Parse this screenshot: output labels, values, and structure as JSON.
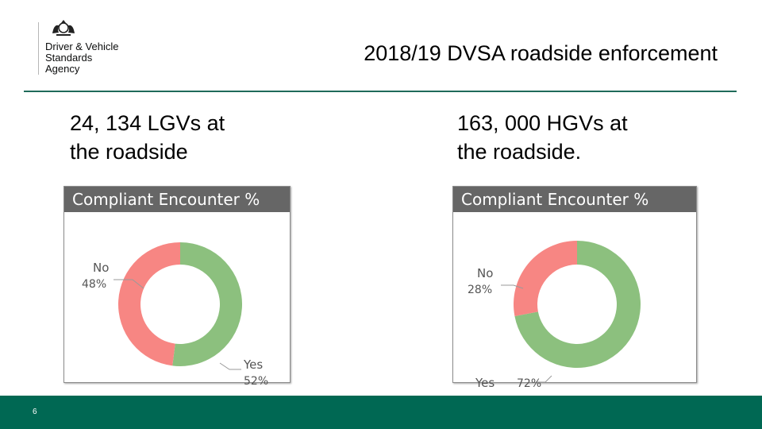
{
  "logo": {
    "line1": "Driver & Vehicle",
    "line2": "Standards",
    "line3": "Agency"
  },
  "slide": {
    "title": "2018/19 DVSA roadside enforcement",
    "page_number": "6"
  },
  "captions": {
    "left": {
      "line1": "24, 134 LGVs at",
      "line2": "the roadside"
    },
    "right": {
      "line1": "163, 000 HGVs at",
      "line2": "the roadside."
    }
  },
  "colors": {
    "accent_green": "#006853",
    "yes_slice": "#8cc07e",
    "no_slice": "#f78683",
    "header_grey": "#666666"
  },
  "chart_data": [
    {
      "type": "pie",
      "title": "Compliant Encounter %",
      "categories": [
        "Yes",
        "No"
      ],
      "values": [
        52,
        48
      ],
      "labels": [
        {
          "name": "Yes",
          "value": "52%"
        },
        {
          "name": "No",
          "value": "48%"
        }
      ],
      "donut": true
    },
    {
      "type": "pie",
      "title": "Compliant Encounter %",
      "categories": [
        "Yes",
        "No"
      ],
      "values": [
        72,
        28
      ],
      "labels": [
        {
          "name": "Yes",
          "value": "72%"
        },
        {
          "name": "No",
          "value": "28%"
        }
      ],
      "donut": true
    }
  ]
}
